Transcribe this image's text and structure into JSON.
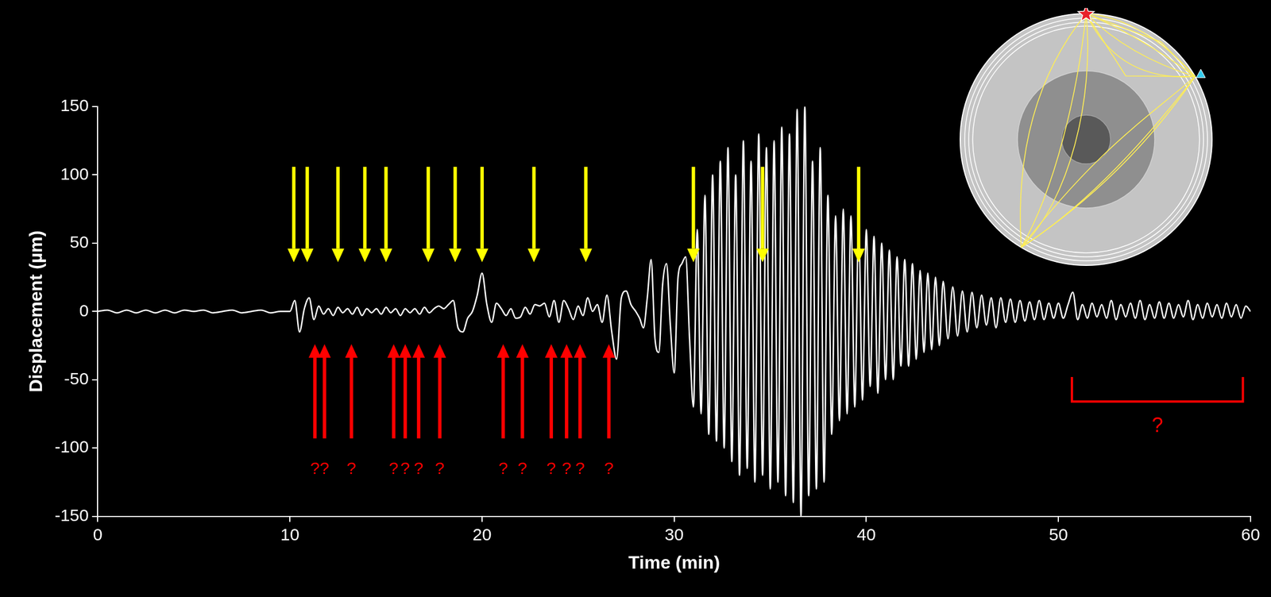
{
  "chart_data": {
    "type": "line",
    "x_label": "Time (min)",
    "y_label": "Displacement (µm)",
    "color": "#ffffff",
    "x": [
      0,
      0.5,
      1,
      1.5,
      2,
      2.5,
      3,
      3.5,
      4,
      4.5,
      5,
      5.5,
      6,
      6.5,
      7,
      7.5,
      8,
      8.5,
      9,
      9.5,
      10,
      10.25,
      10.5,
      10.75,
      11,
      11.25,
      11.5,
      11.75,
      12,
      12.25,
      12.5,
      12.75,
      13,
      13.25,
      13.5,
      13.75,
      14,
      14.25,
      14.5,
      14.75,
      15,
      15.25,
      15.5,
      15.75,
      16,
      16.25,
      16.5,
      16.75,
      17,
      17.25,
      17.5,
      17.75,
      18,
      18.25,
      18.5,
      18.75,
      19,
      19.25,
      19.5,
      19.75,
      20,
      20.25,
      20.5,
      20.75,
      21,
      21.25,
      21.5,
      21.75,
      22,
      22.25,
      22.5,
      22.75,
      23,
      23.25,
      23.5,
      23.75,
      24,
      24.25,
      24.5,
      24.75,
      25,
      25.25,
      25.5,
      25.75,
      26,
      26.25,
      26.5,
      26.75,
      27,
      27.25,
      27.5,
      27.75,
      28,
      28.2,
      28.4,
      28.6,
      28.8,
      29,
      29.2,
      29.4,
      29.6,
      29.8,
      30,
      30.2,
      30.4,
      30.6,
      30.8,
      31,
      31.2,
      31.4,
      31.6,
      31.8,
      32,
      32.2,
      32.4,
      32.6,
      32.8,
      33,
      33.2,
      33.4,
      33.6,
      33.8,
      34,
      34.2,
      34.4,
      34.6,
      34.8,
      35,
      35.2,
      35.4,
      35.6,
      35.8,
      36,
      36.2,
      36.4,
      36.6,
      36.8,
      37,
      37.2,
      37.4,
      37.6,
      37.8,
      38,
      38.2,
      38.4,
      38.6,
      38.8,
      39,
      39.2,
      39.4,
      39.6,
      39.8,
      40,
      40.2,
      40.4,
      40.6,
      40.8,
      41,
      41.2,
      41.4,
      41.6,
      41.8,
      42,
      42.2,
      42.4,
      42.6,
      42.8,
      43,
      43.2,
      43.4,
      43.6,
      43.8,
      44,
      44.25,
      44.5,
      44.75,
      45,
      45.25,
      45.5,
      45.75,
      46,
      46.25,
      46.5,
      46.75,
      47,
      47.25,
      47.5,
      47.75,
      48,
      48.25,
      48.5,
      48.75,
      49,
      49.25,
      49.5,
      49.75,
      50,
      50.25,
      50.5,
      50.75,
      51,
      51.25,
      51.5,
      51.75,
      52,
      52.25,
      52.5,
      52.75,
      53,
      53.25,
      53.5,
      53.75,
      54,
      54.25,
      54.5,
      54.75,
      55,
      55.25,
      55.5,
      55.75,
      56,
      56.25,
      56.5,
      56.75,
      57,
      57.25,
      57.5,
      57.75,
      58,
      58.25,
      58.5,
      58.75,
      59,
      59.25,
      59.5,
      59.75,
      60
    ],
    "values": [
      0,
      1,
      -1,
      1,
      -1,
      1,
      -1,
      1,
      -1,
      1,
      0,
      1,
      -1,
      0,
      1,
      -1,
      0,
      1,
      -1,
      0,
      0,
      8,
      -15,
      2,
      10,
      -6,
      4,
      -2,
      2,
      -3,
      3,
      -1,
      2,
      -2,
      3,
      -3,
      2,
      -1,
      2,
      -2,
      3,
      -1,
      2,
      -3,
      2,
      -1,
      2,
      -2,
      3,
      -1,
      2,
      4,
      2,
      5,
      8,
      -12,
      -15,
      -5,
      0,
      12,
      28,
      5,
      -8,
      6,
      2,
      -3,
      2,
      -5,
      -4,
      3,
      -2,
      5,
      4,
      6,
      -4,
      8,
      -8,
      8,
      2,
      -6,
      4,
      -3,
      10,
      0,
      5,
      -8,
      12,
      -15,
      -35,
      10,
      15,
      5,
      0,
      -5,
      -12,
      10,
      38,
      -20,
      -30,
      20,
      35,
      -10,
      -45,
      25,
      35,
      40,
      -20,
      -70,
      60,
      -75,
      85,
      -90,
      100,
      -95,
      110,
      -100,
      120,
      -110,
      100,
      -120,
      125,
      -115,
      110,
      -125,
      130,
      -120,
      120,
      -130,
      125,
      -125,
      135,
      -135,
      130,
      -140,
      148,
      -150,
      150,
      -135,
      110,
      -130,
      120,
      -125,
      85,
      -90,
      70,
      -80,
      75,
      -75,
      70,
      -70,
      65,
      -65,
      60,
      -55,
      55,
      -60,
      50,
      -50,
      45,
      -50,
      40,
      -40,
      38,
      -40,
      35,
      -35,
      30,
      -30,
      28,
      -28,
      25,
      -25,
      22,
      -20,
      18,
      -18,
      15,
      -15,
      14,
      -12,
      12,
      -10,
      10,
      -12,
      10,
      -8,
      9,
      -8,
      8,
      -7,
      7,
      -6,
      8,
      -6,
      6,
      -5,
      6,
      -5,
      5,
      14,
      -6,
      5,
      -5,
      6,
      -4,
      5,
      -5,
      8,
      -6,
      5,
      -4,
      6,
      -5,
      8,
      -6,
      5,
      -5,
      7,
      -5,
      6,
      -5,
      5,
      -4,
      8,
      -6,
      5,
      -5,
      6,
      -4,
      5,
      -5,
      6,
      -4,
      5,
      -5,
      4,
      0
    ],
    "xlim": [
      0,
      60
    ],
    "xticks": [
      0,
      10,
      20,
      30,
      40,
      50,
      60
    ],
    "ylim": [
      -150,
      150
    ],
    "yticks": [
      -150,
      -100,
      -50,
      0,
      50,
      100,
      150
    ],
    "grid": false,
    "annotations": [
      {
        "type": "arrow",
        "direction": "down",
        "color": "#ffff00",
        "x": [
          10.2,
          10.9,
          12.5,
          13.9,
          15.0,
          17.2,
          18.6,
          20.0,
          22.7,
          25.4,
          31.0,
          34.6,
          39.6
        ]
      },
      {
        "type": "arrow",
        "direction": "up",
        "color": "#ff0000",
        "text": "?",
        "x": [
          11.3,
          11.8,
          13.2,
          15.4,
          16.0,
          16.7,
          17.8,
          21.1,
          22.1,
          23.6,
          24.4,
          25.1,
          26.6
        ]
      },
      {
        "type": "bracket",
        "color": "#ff0000",
        "text": "?",
        "x": [
          50.7,
          59.6
        ]
      }
    ]
  }
}
